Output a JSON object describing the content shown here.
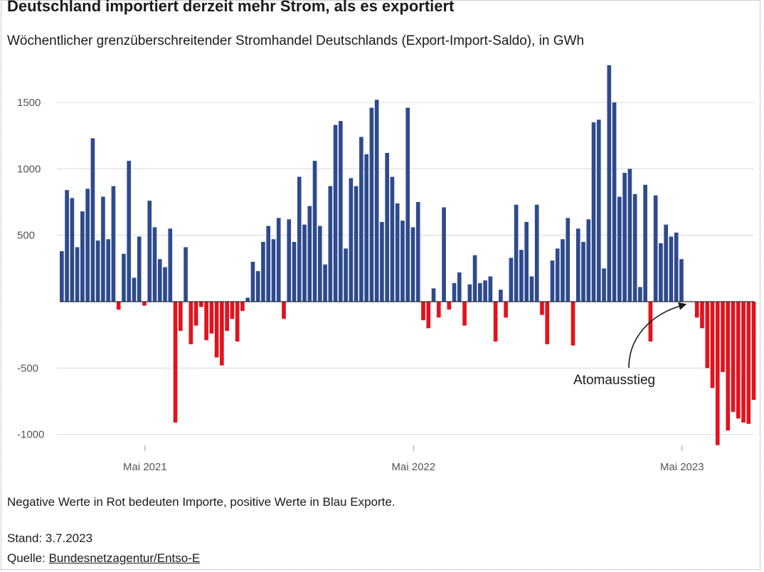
{
  "header": {
    "title": "Deutschland importiert derzeit mehr Strom, als es exportiert",
    "subtitle": "Wöchentlicher grenzüberschreitender Stromhandel Deutschlands (Export-Import-Saldo), in GWh"
  },
  "footer": {
    "note": "Negative Werte in Rot bedeuten Importe, positive Werte in Blau Exporte.",
    "stand": "Stand: 3.7.2023",
    "source_prefix": "Quelle: ",
    "source_link": "Bundesnetzagentur/Entso-E"
  },
  "colors": {
    "positive": "#2e4a8e",
    "negative": "#e3121d",
    "grid": "#d8d8d8"
  },
  "chart_data": {
    "type": "bar",
    "title": "Deutschland importiert derzeit mehr Strom, als es exportiert",
    "ylabel": "GWh",
    "ylim": [
      -1100,
      1800
    ],
    "yticks": [
      1500,
      1000,
      500,
      -500,
      -1000
    ],
    "ytick_labels": [
      "1500",
      "1000",
      "500",
      "-500",
      "-1000"
    ],
    "xticks": [
      {
        "label": "Mai 2021",
        "week_index": 16.5
      },
      {
        "label": "Mai 2022",
        "week_index": 68.5
      },
      {
        "label": "Mai 2023",
        "week_index": 120.5
      }
    ],
    "annotation": {
      "text": "Atomausstieg",
      "week_index": 121
    },
    "values": [
      380,
      840,
      780,
      410,
      680,
      850,
      1230,
      460,
      790,
      470,
      870,
      -60,
      360,
      1060,
      180,
      490,
      -30,
      760,
      560,
      320,
      260,
      550,
      -910,
      -220,
      410,
      -320,
      -180,
      -40,
      -290,
      -240,
      -420,
      -480,
      -220,
      -130,
      -300,
      -70,
      30,
      300,
      230,
      450,
      570,
      470,
      630,
      -130,
      620,
      450,
      940,
      580,
      720,
      1060,
      570,
      280,
      870,
      1330,
      1360,
      400,
      930,
      870,
      1240,
      1110,
      1460,
      1520,
      600,
      1120,
      940,
      740,
      610,
      1460,
      560,
      750,
      -140,
      -200,
      100,
      -120,
      710,
      -60,
      140,
      220,
      -180,
      130,
      350,
      140,
      160,
      190,
      -300,
      90,
      -120,
      330,
      730,
      390,
      600,
      190,
      730,
      -100,
      -320,
      310,
      400,
      470,
      630,
      -330,
      550,
      450,
      620,
      1350,
      1370,
      250,
      1780,
      1500,
      790,
      970,
      1000,
      810,
      110,
      880,
      -300,
      800,
      440,
      580,
      490,
      520,
      320,
      0,
      0,
      -120,
      -200,
      -500,
      -650,
      -1080,
      -530,
      -970,
      -830,
      -880,
      -910,
      -920,
      -740
    ]
  }
}
